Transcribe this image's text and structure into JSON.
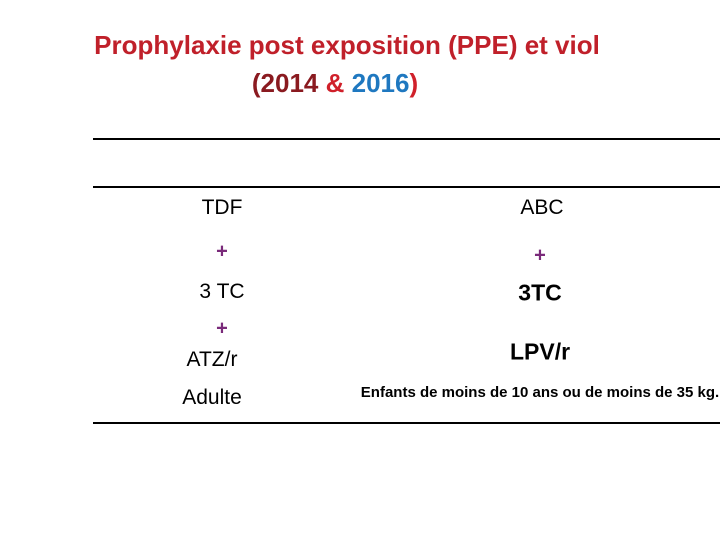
{
  "title": {
    "line1": "Prophylaxie post exposition (PPE) et viol",
    "line2": [
      "(2014",
      "&",
      "2016",
      ")"
    ]
  },
  "table": {
    "columns": [
      [
        "TDF",
        "+",
        "3 TC",
        "+",
        "ATZ/r",
        "Adulte"
      ],
      [
        "ABC",
        "+",
        "3TC",
        "LPV/r",
        "Enfants de moins de 10 ans ou de moins de 35 kg."
      ]
    ]
  }
}
